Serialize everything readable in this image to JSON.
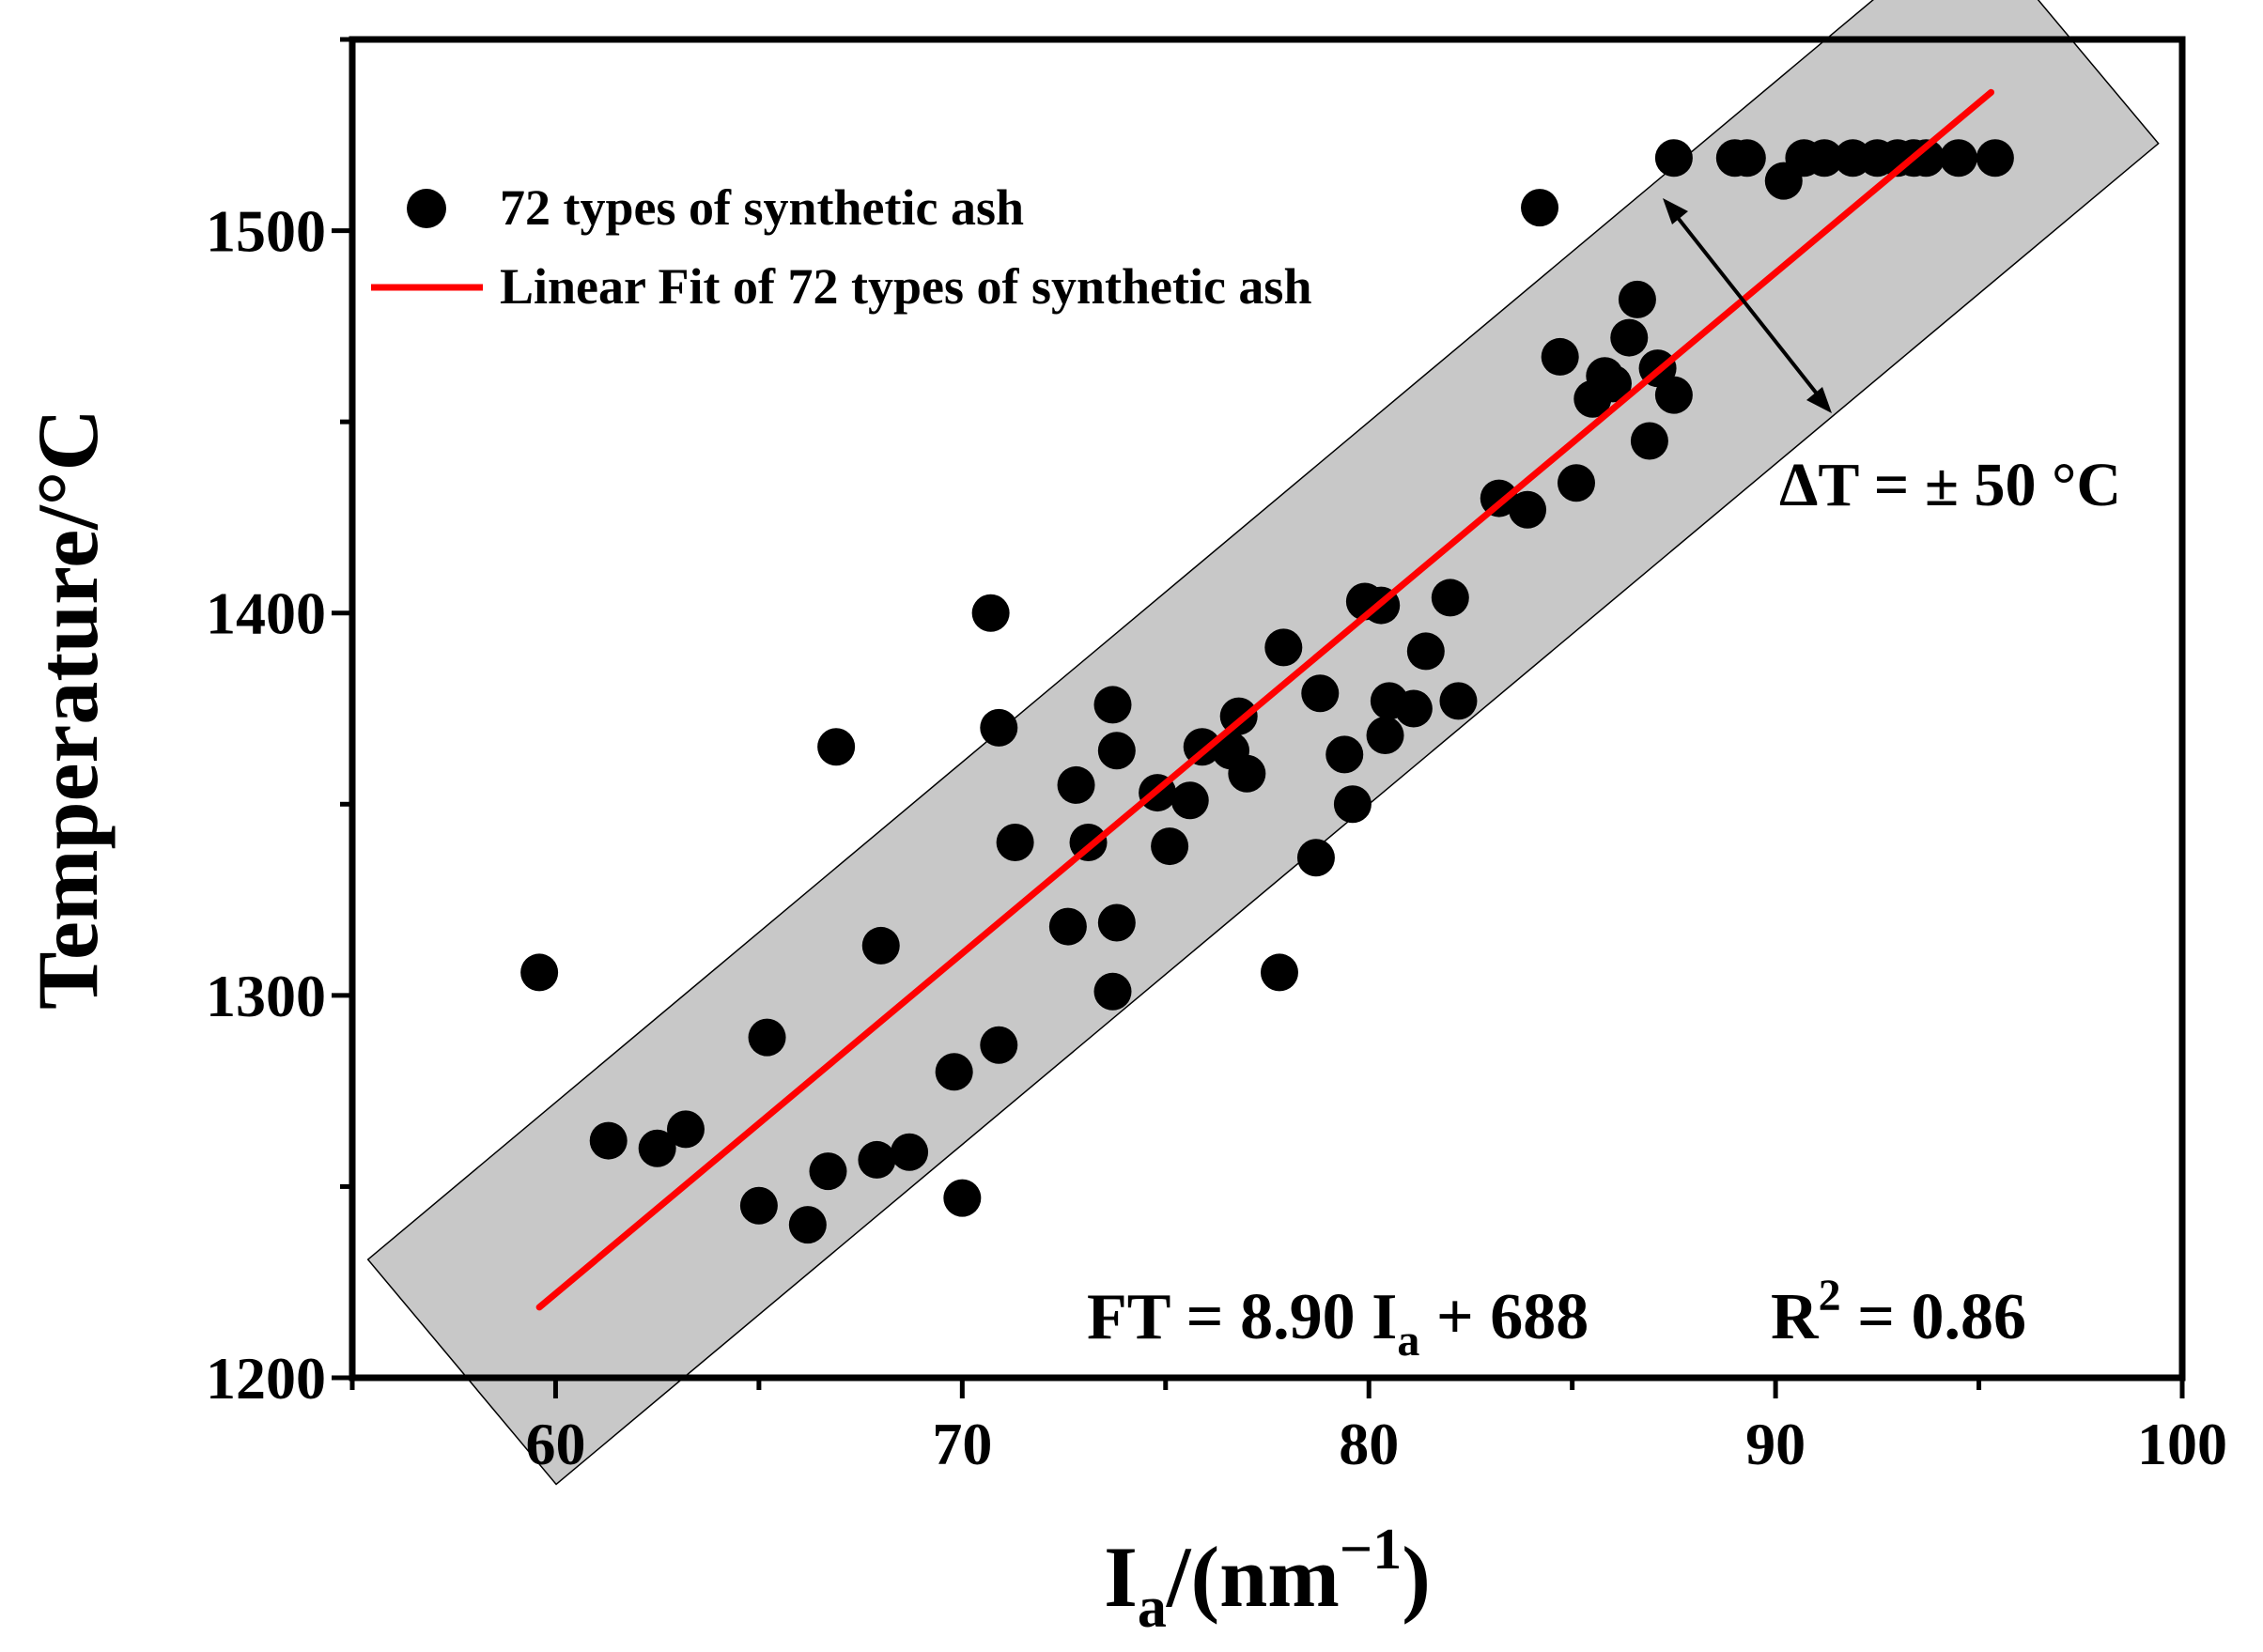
{
  "chart_data": {
    "type": "scatter",
    "title": "",
    "xlabel": {
      "main": "I",
      "sub": "a",
      "rest": "/(nm",
      "sup": "−1",
      "close": ")"
    },
    "ylabel": "Temperature/°C",
    "xlim": [
      55,
      100
    ],
    "ylim": [
      1200,
      1550
    ],
    "x_ticks": [
      60,
      70,
      80,
      90,
      100
    ],
    "x_tick_labels": [
      "60",
      "70",
      "80",
      "90",
      "100"
    ],
    "y_ticks": [
      1200,
      1300,
      1400,
      1500
    ],
    "y_tick_labels": [
      "1200",
      "1300",
      "1400",
      "1500"
    ],
    "legend": {
      "position": "top-left",
      "entries": [
        {
          "label": "72 types of synthetic ash",
          "marker": "circle",
          "color": "#000000"
        },
        {
          "label": "Linear Fit of 72 types of synthetic ash",
          "marker": "line",
          "color": "#ff0000"
        }
      ]
    },
    "fit": {
      "slope": 8.9,
      "intercept": 688,
      "x_range": [
        59.6,
        95.3
      ],
      "color": "#ff0000"
    },
    "band": {
      "delta": 50,
      "x_range": [
        57.7,
        97.1
      ],
      "fill": "#c8c8c8"
    },
    "annotations": {
      "delta_t": "ΔT = ± 50 °C",
      "equation": {
        "lhs": "FT = 8.90 I",
        "sub": "a",
        "rhs": " + 688",
        "r_label": "R",
        "r_sup": "2",
        "r_value": " = 0.86"
      }
    },
    "series": [
      {
        "name": "72 types of synthetic ash",
        "color": "#000000",
        "points": [
          [
            59.6,
            1306
          ],
          [
            61.3,
            1262
          ],
          [
            62.5,
            1260
          ],
          [
            63.2,
            1265
          ],
          [
            65.2,
            1289
          ],
          [
            65.0,
            1245
          ],
          [
            66.2,
            1240
          ],
          [
            66.7,
            1254
          ],
          [
            66.9,
            1365
          ],
          [
            67.9,
            1257
          ],
          [
            68.0,
            1313
          ],
          [
            68.7,
            1259
          ],
          [
            69.8,
            1280
          ],
          [
            70.0,
            1247
          ],
          [
            70.7,
            1400
          ],
          [
            70.9,
            1370
          ],
          [
            70.9,
            1287
          ],
          [
            71.3,
            1340
          ],
          [
            72.6,
            1318
          ],
          [
            72.8,
            1355
          ],
          [
            73.1,
            1340
          ],
          [
            73.7,
            1376
          ],
          [
            73.8,
            1364
          ],
          [
            73.8,
            1319
          ],
          [
            73.7,
            1301
          ],
          [
            74.8,
            1353
          ],
          [
            75.1,
            1339
          ],
          [
            75.6,
            1351
          ],
          [
            75.9,
            1365
          ],
          [
            76.6,
            1364
          ],
          [
            76.8,
            1373
          ],
          [
            77.0,
            1358
          ],
          [
            77.8,
            1306
          ],
          [
            77.9,
            1391
          ],
          [
            78.7,
            1336
          ],
          [
            78.8,
            1379
          ],
          [
            79.4,
            1363
          ],
          [
            79.6,
            1350
          ],
          [
            79.9,
            1403
          ],
          [
            80.3,
            1402
          ],
          [
            80.4,
            1368
          ],
          [
            80.5,
            1377
          ],
          [
            81.1,
            1375
          ],
          [
            81.4,
            1390
          ],
          [
            82.0,
            1404
          ],
          [
            82.2,
            1377
          ],
          [
            83.2,
            1430
          ],
          [
            83.9,
            1427
          ],
          [
            84.2,
            1506
          ],
          [
            84.7,
            1467
          ],
          [
            85.1,
            1434
          ],
          [
            85.5,
            1456
          ],
          [
            85.8,
            1462
          ],
          [
            86.0,
            1460
          ],
          [
            86.4,
            1472
          ],
          [
            86.6,
            1482
          ],
          [
            86.9,
            1445
          ],
          [
            87.1,
            1464
          ],
          [
            87.5,
            1457
          ],
          [
            87.5,
            1519
          ],
          [
            89.0,
            1519
          ],
          [
            89.3,
            1519
          ],
          [
            90.2,
            1513
          ],
          [
            90.7,
            1519
          ],
          [
            91.2,
            1519
          ],
          [
            91.9,
            1519
          ],
          [
            92.5,
            1519
          ],
          [
            93.0,
            1519
          ],
          [
            93.4,
            1519
          ],
          [
            93.7,
            1519
          ],
          [
            94.5,
            1519
          ],
          [
            95.4,
            1519
          ]
        ]
      }
    ]
  }
}
